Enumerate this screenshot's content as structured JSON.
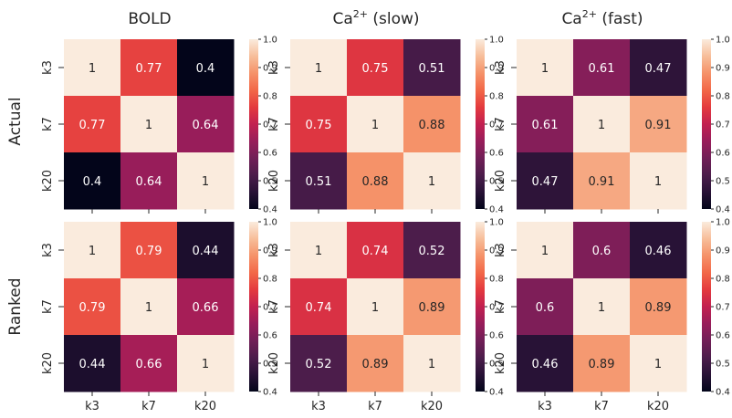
{
  "figure": {
    "column_titles": [
      {
        "base": "BOLD",
        "sup": "",
        "suffix": ""
      },
      {
        "base": "Ca",
        "sup": "2+",
        "suffix": " (slow)"
      },
      {
        "base": "Ca",
        "sup": "2+",
        "suffix": " (fast)"
      }
    ],
    "row_titles": [
      "Actual",
      "Ranked"
    ],
    "colormap": "rocket",
    "colorbar_ticks": [
      "0.4",
      "0.5",
      "0.6",
      "0.7",
      "0.8",
      "0.9",
      "1.0"
    ]
  },
  "chart_data": [
    {
      "type": "heatmap",
      "row": "Actual",
      "column": "BOLD",
      "x_categories": [
        "k3",
        "k7",
        "k20"
      ],
      "y_categories": [
        "k3",
        "k7",
        "k20"
      ],
      "values": [
        [
          1,
          0.77,
          0.4
        ],
        [
          0.77,
          1,
          0.64
        ],
        [
          0.4,
          0.64,
          1
        ]
      ],
      "labels": [
        [
          "1",
          "0.77",
          "0.4"
        ],
        [
          "0.77",
          "1",
          "0.64"
        ],
        [
          "0.4",
          "0.64",
          "1"
        ]
      ],
      "vmin": 0.4,
      "vmax": 1.0
    },
    {
      "type": "heatmap",
      "row": "Actual",
      "column": "Ca2+ (slow)",
      "x_categories": [
        "k3",
        "k7",
        "k20"
      ],
      "y_categories": [
        "k3",
        "k7",
        "k20"
      ],
      "values": [
        [
          1,
          0.75,
          0.51
        ],
        [
          0.75,
          1,
          0.88
        ],
        [
          0.51,
          0.88,
          1
        ]
      ],
      "labels": [
        [
          "1",
          "0.75",
          "0.51"
        ],
        [
          "0.75",
          "1",
          "0.88"
        ],
        [
          "0.51",
          "0.88",
          "1"
        ]
      ],
      "vmin": 0.4,
      "vmax": 1.0
    },
    {
      "type": "heatmap",
      "row": "Actual",
      "column": "Ca2+ (fast)",
      "x_categories": [
        "k3",
        "k7",
        "k20"
      ],
      "y_categories": [
        "k3",
        "k7",
        "k20"
      ],
      "values": [
        [
          1,
          0.61,
          0.47
        ],
        [
          0.61,
          1,
          0.91
        ],
        [
          0.47,
          0.91,
          1
        ]
      ],
      "labels": [
        [
          "1",
          "0.61",
          "0.47"
        ],
        [
          "0.61",
          "1",
          "0.91"
        ],
        [
          "0.47",
          "0.91",
          "1"
        ]
      ],
      "vmin": 0.4,
      "vmax": 1.0
    },
    {
      "type": "heatmap",
      "row": "Ranked",
      "column": "BOLD",
      "x_categories": [
        "k3",
        "k7",
        "k20"
      ],
      "y_categories": [
        "k3",
        "k7",
        "k20"
      ],
      "values": [
        [
          1,
          0.79,
          0.44
        ],
        [
          0.79,
          1,
          0.66
        ],
        [
          0.44,
          0.66,
          1
        ]
      ],
      "labels": [
        [
          "1",
          "0.79",
          "0.44"
        ],
        [
          "0.79",
          "1",
          "0.66"
        ],
        [
          "0.44",
          "0.66",
          "1"
        ]
      ],
      "vmin": 0.4,
      "vmax": 1.0
    },
    {
      "type": "heatmap",
      "row": "Ranked",
      "column": "Ca2+ (slow)",
      "x_categories": [
        "k3",
        "k7",
        "k20"
      ],
      "y_categories": [
        "k3",
        "k7",
        "k20"
      ],
      "values": [
        [
          1,
          0.74,
          0.52
        ],
        [
          0.74,
          1,
          0.89
        ],
        [
          0.52,
          0.89,
          1
        ]
      ],
      "labels": [
        [
          "1",
          "0.74",
          "0.52"
        ],
        [
          "0.74",
          "1",
          "0.89"
        ],
        [
          "0.52",
          "0.89",
          "1"
        ]
      ],
      "vmin": 0.4,
      "vmax": 1.0
    },
    {
      "type": "heatmap",
      "row": "Ranked",
      "column": "Ca2+ (fast)",
      "x_categories": [
        "k3",
        "k7",
        "k20"
      ],
      "y_categories": [
        "k3",
        "k7",
        "k20"
      ],
      "values": [
        [
          1,
          0.6,
          0.46
        ],
        [
          0.6,
          1,
          0.89
        ],
        [
          0.46,
          0.89,
          1
        ]
      ],
      "labels": [
        [
          "1",
          "0.6",
          "0.46"
        ],
        [
          "0.6",
          "1",
          "0.89"
        ],
        [
          "0.46",
          "0.89",
          "1"
        ]
      ],
      "vmin": 0.4,
      "vmax": 1.0
    }
  ]
}
